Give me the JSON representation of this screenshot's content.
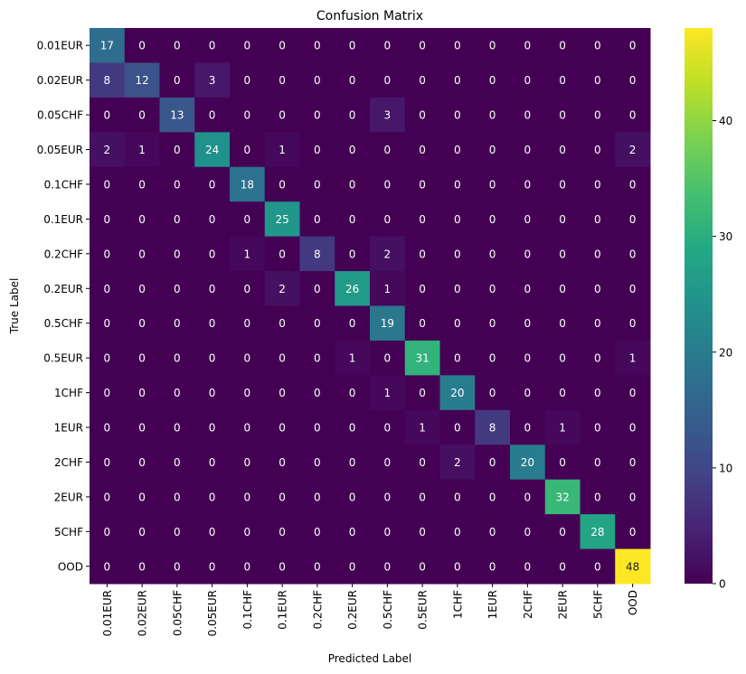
{
  "chart_data": {
    "type": "heatmap",
    "title": "Confusion Matrix",
    "xlabel": "Predicted Label",
    "ylabel": "True Label",
    "x_categories": [
      "0.01EUR",
      "0.02EUR",
      "0.05CHF",
      "0.05EUR",
      "0.1CHF",
      "0.1EUR",
      "0.2CHF",
      "0.2EUR",
      "0.5CHF",
      "0.5EUR",
      "1CHF",
      "1EUR",
      "2CHF",
      "2EUR",
      "5CHF",
      "OOD"
    ],
    "y_categories": [
      "0.01EUR",
      "0.02EUR",
      "0.05CHF",
      "0.05EUR",
      "0.1CHF",
      "0.1EUR",
      "0.2CHF",
      "0.2EUR",
      "0.5CHF",
      "0.5EUR",
      "1CHF",
      "1EUR",
      "2CHF",
      "2EUR",
      "5CHF",
      "OOD"
    ],
    "values": [
      [
        17,
        0,
        0,
        0,
        0,
        0,
        0,
        0,
        0,
        0,
        0,
        0,
        0,
        0,
        0,
        0
      ],
      [
        8,
        12,
        0,
        3,
        0,
        0,
        0,
        0,
        0,
        0,
        0,
        0,
        0,
        0,
        0,
        0
      ],
      [
        0,
        0,
        13,
        0,
        0,
        0,
        0,
        0,
        3,
        0,
        0,
        0,
        0,
        0,
        0,
        0
      ],
      [
        2,
        1,
        0,
        24,
        0,
        1,
        0,
        0,
        0,
        0,
        0,
        0,
        0,
        0,
        0,
        2
      ],
      [
        0,
        0,
        0,
        0,
        18,
        0,
        0,
        0,
        0,
        0,
        0,
        0,
        0,
        0,
        0,
        0
      ],
      [
        0,
        0,
        0,
        0,
        0,
        25,
        0,
        0,
        0,
        0,
        0,
        0,
        0,
        0,
        0,
        0
      ],
      [
        0,
        0,
        0,
        0,
        1,
        0,
        8,
        0,
        2,
        0,
        0,
        0,
        0,
        0,
        0,
        0
      ],
      [
        0,
        0,
        0,
        0,
        0,
        2,
        0,
        26,
        1,
        0,
        0,
        0,
        0,
        0,
        0,
        0
      ],
      [
        0,
        0,
        0,
        0,
        0,
        0,
        0,
        0,
        19,
        0,
        0,
        0,
        0,
        0,
        0,
        0
      ],
      [
        0,
        0,
        0,
        0,
        0,
        0,
        0,
        1,
        0,
        31,
        0,
        0,
        0,
        0,
        0,
        1
      ],
      [
        0,
        0,
        0,
        0,
        0,
        0,
        0,
        0,
        1,
        0,
        20,
        0,
        0,
        0,
        0,
        0
      ],
      [
        0,
        0,
        0,
        0,
        0,
        0,
        0,
        0,
        0,
        1,
        0,
        8,
        0,
        1,
        0,
        0
      ],
      [
        0,
        0,
        0,
        0,
        0,
        0,
        0,
        0,
        0,
        0,
        2,
        0,
        20,
        0,
        0,
        0
      ],
      [
        0,
        0,
        0,
        0,
        0,
        0,
        0,
        0,
        0,
        0,
        0,
        0,
        0,
        32,
        0,
        0
      ],
      [
        0,
        0,
        0,
        0,
        0,
        0,
        0,
        0,
        0,
        0,
        0,
        0,
        0,
        0,
        28,
        0
      ],
      [
        0,
        0,
        0,
        0,
        0,
        0,
        0,
        0,
        0,
        0,
        0,
        0,
        0,
        0,
        0,
        48
      ]
    ],
    "colormap": "viridis",
    "vmin": 0,
    "vmax": 48,
    "colorbar_ticks": [
      0,
      10,
      20,
      30,
      40
    ],
    "annotations": true,
    "grid": false,
    "legend": "colorbar-right"
  }
}
